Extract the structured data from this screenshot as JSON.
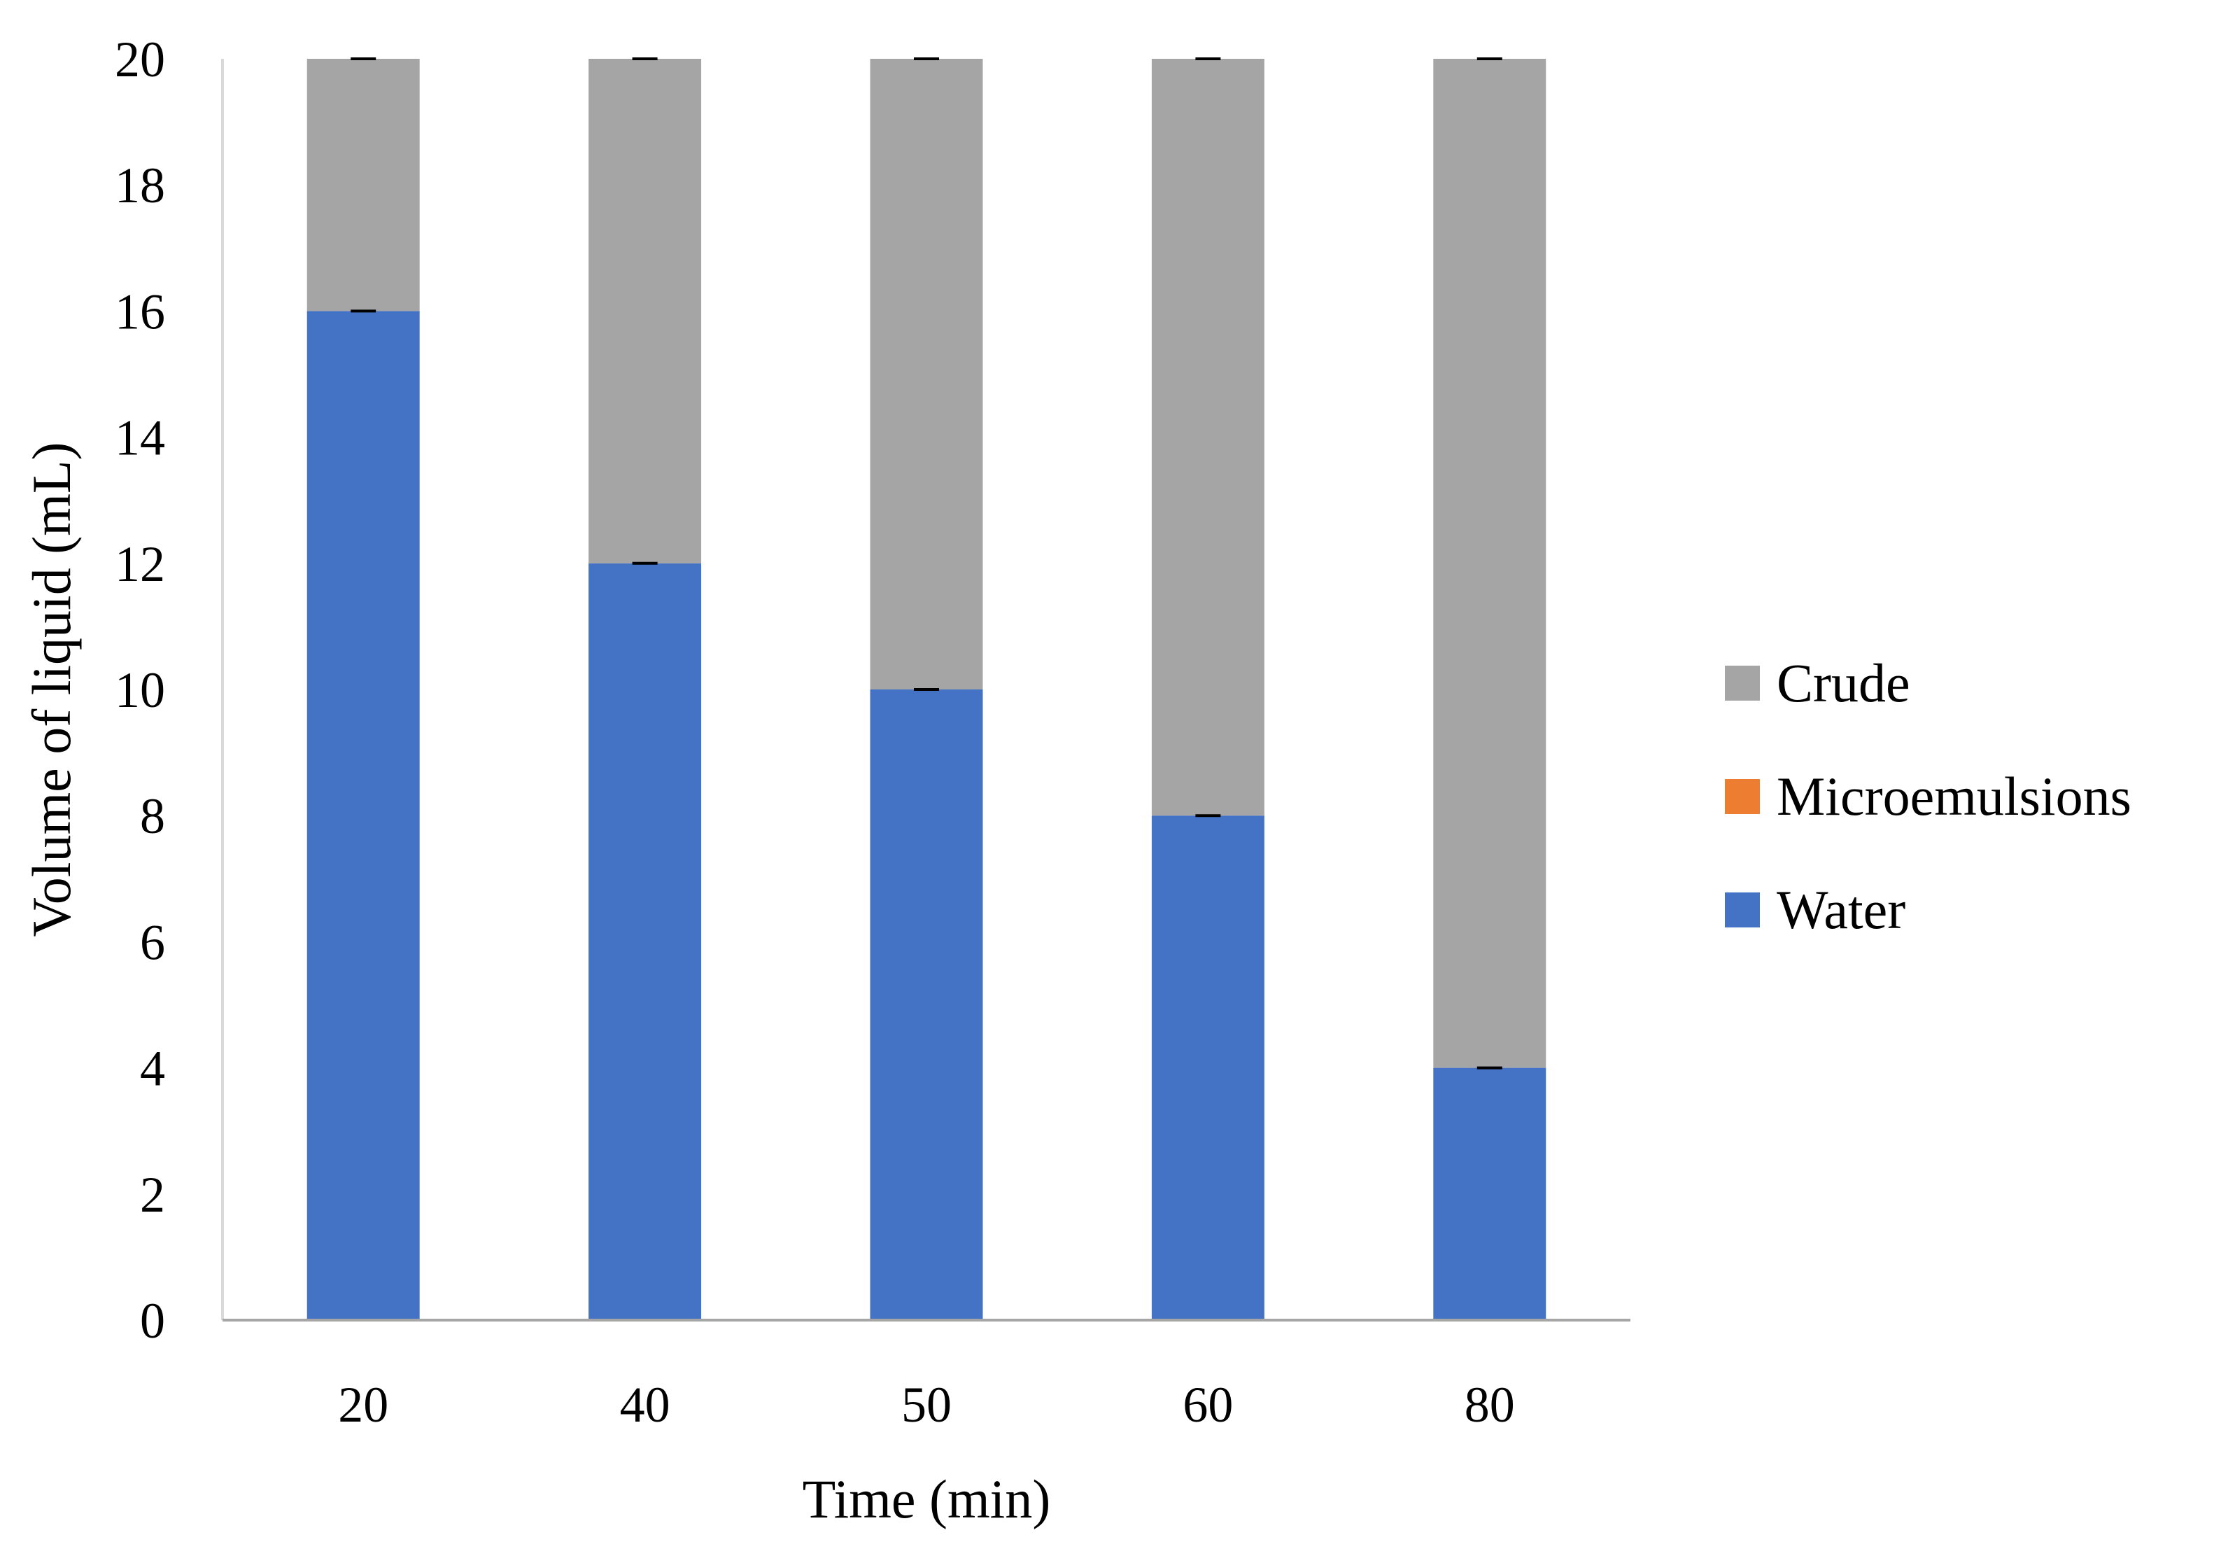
{
  "chart_data": {
    "type": "bar",
    "stacked": true,
    "title": "",
    "xlabel": "Time (min)",
    "ylabel": "Volume of liquid (mL)",
    "categories": [
      "20",
      "40",
      "50",
      "60",
      "80"
    ],
    "ylim": [
      0,
      20
    ],
    "yticks": [
      "0",
      "2",
      "4",
      "6",
      "8",
      "10",
      "12",
      "14",
      "16",
      "18",
      "20"
    ],
    "grid": false,
    "legend_position": "right",
    "series": [
      {
        "name": "Water",
        "color": "#4472C4",
        "values": [
          16,
          12,
          10,
          8,
          4
        ]
      },
      {
        "name": "Microemulsions",
        "color": "#ED7D31",
        "values": [
          0,
          0,
          0,
          0,
          0
        ]
      },
      {
        "name": "Crude",
        "color": "#A5A5A5",
        "values": [
          4,
          8,
          10,
          12,
          16
        ]
      }
    ],
    "legend_order": [
      "Crude",
      "Microemulsions",
      "Water"
    ]
  }
}
